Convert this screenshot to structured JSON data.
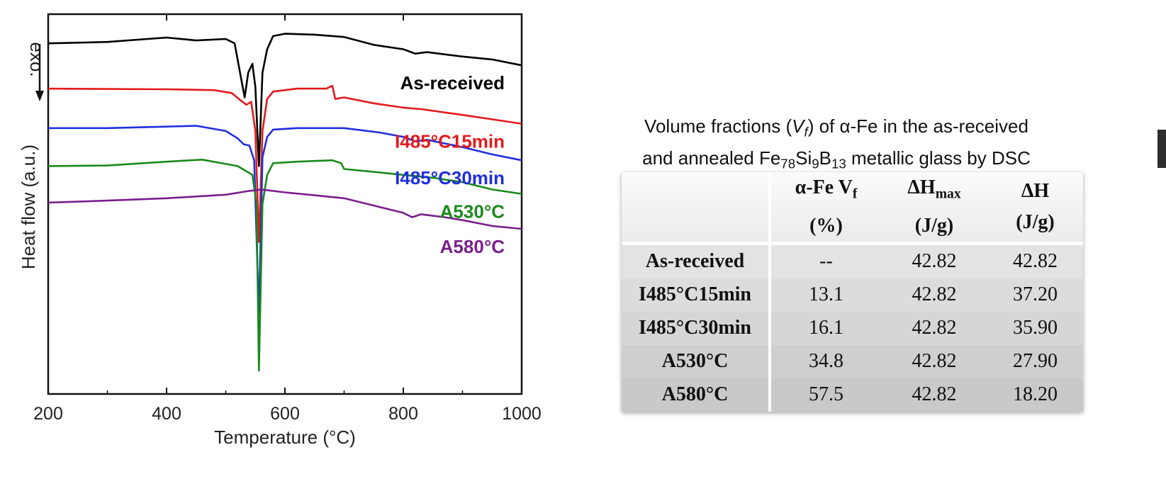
{
  "chart_data": {
    "type": "line",
    "title": "",
    "xlabel": "Temperature (°C)",
    "ylabel": "Heat flow (a.u.)",
    "annotation": "exo.",
    "xlim": [
      200,
      1000
    ],
    "xticks": [
      200,
      400,
      600,
      800,
      1000
    ],
    "xtick_labels": [
      "200",
      "400",
      "600",
      "800",
      "1000"
    ],
    "ylim": [
      -12,
      1
    ],
    "yticks_shown": false,
    "grid": false,
    "legend": "inline labels at right of each curve",
    "series": [
      {
        "name": "As-received",
        "color": "#000000",
        "points": [
          [
            200,
            0.0
          ],
          [
            300,
            0.05
          ],
          [
            400,
            0.2
          ],
          [
            450,
            0.1
          ],
          [
            500,
            0.15
          ],
          [
            515,
            0.0
          ],
          [
            525,
            -1.1
          ],
          [
            532,
            -1.85
          ],
          [
            538,
            -1.0
          ],
          [
            545,
            -0.7
          ],
          [
            550,
            -1.5
          ],
          [
            556,
            -4.2
          ],
          [
            562,
            -1.0
          ],
          [
            570,
            -0.2
          ],
          [
            580,
            0.25
          ],
          [
            600,
            0.33
          ],
          [
            650,
            0.3
          ],
          [
            700,
            0.22
          ],
          [
            750,
            -0.05
          ],
          [
            800,
            -0.2
          ],
          [
            820,
            -0.35
          ],
          [
            840,
            -0.3
          ],
          [
            900,
            -0.45
          ],
          [
            950,
            -0.55
          ],
          [
            1000,
            -0.75
          ]
        ]
      },
      {
        "name": "I485°C15min",
        "color": "#e31a1c",
        "points": [
          [
            200,
            -1.55
          ],
          [
            300,
            -1.56
          ],
          [
            400,
            -1.57
          ],
          [
            480,
            -1.6
          ],
          [
            510,
            -1.7
          ],
          [
            525,
            -1.95
          ],
          [
            535,
            -2.1
          ],
          [
            543,
            -2.0
          ],
          [
            550,
            -3.0
          ],
          [
            556,
            -6.8
          ],
          [
            562,
            -3.0
          ],
          [
            570,
            -1.9
          ],
          [
            580,
            -1.65
          ],
          [
            620,
            -1.55
          ],
          [
            670,
            -1.55
          ],
          [
            680,
            -1.45
          ],
          [
            685,
            -1.9
          ],
          [
            700,
            -1.85
          ],
          [
            750,
            -2.05
          ],
          [
            800,
            -2.2
          ],
          [
            830,
            -2.25
          ],
          [
            900,
            -2.45
          ],
          [
            950,
            -2.6
          ],
          [
            1000,
            -2.75
          ]
        ]
      },
      {
        "name": "I485°C30min",
        "color": "#1f2fe0",
        "points": [
          [
            200,
            -2.9
          ],
          [
            300,
            -2.9
          ],
          [
            400,
            -2.85
          ],
          [
            450,
            -2.82
          ],
          [
            500,
            -3.0
          ],
          [
            520,
            -3.25
          ],
          [
            530,
            -3.45
          ],
          [
            540,
            -3.5
          ],
          [
            548,
            -4.0
          ],
          [
            556,
            -9.3
          ],
          [
            562,
            -3.9
          ],
          [
            570,
            -3.2
          ],
          [
            580,
            -2.95
          ],
          [
            620,
            -2.9
          ],
          [
            680,
            -2.9
          ],
          [
            700,
            -2.9
          ],
          [
            760,
            -3.05
          ],
          [
            800,
            -3.2
          ],
          [
            820,
            -3.35
          ],
          [
            840,
            -3.3
          ],
          [
            900,
            -3.55
          ],
          [
            950,
            -3.8
          ],
          [
            1000,
            -4.0
          ]
        ]
      },
      {
        "name": "A530°C",
        "color": "#1a8a1a",
        "points": [
          [
            200,
            -4.2
          ],
          [
            300,
            -4.18
          ],
          [
            400,
            -4.05
          ],
          [
            460,
            -3.98
          ],
          [
            520,
            -4.2
          ],
          [
            545,
            -4.5
          ],
          [
            552,
            -5.5
          ],
          [
            556,
            -11.2
          ],
          [
            562,
            -5.5
          ],
          [
            570,
            -4.5
          ],
          [
            580,
            -4.1
          ],
          [
            620,
            -4.05
          ],
          [
            680,
            -4.0
          ],
          [
            695,
            -4.1
          ],
          [
            700,
            -4.3
          ],
          [
            750,
            -4.4
          ],
          [
            800,
            -4.5
          ],
          [
            850,
            -4.6
          ],
          [
            900,
            -4.75
          ],
          [
            950,
            -5.0
          ],
          [
            1000,
            -5.15
          ]
        ]
      },
      {
        "name": "A580°C",
        "color": "#7a1f8c",
        "points": [
          [
            200,
            -5.45
          ],
          [
            300,
            -5.38
          ],
          [
            400,
            -5.3
          ],
          [
            500,
            -5.18
          ],
          [
            540,
            -5.05
          ],
          [
            560,
            -5.0
          ],
          [
            600,
            -5.1
          ],
          [
            650,
            -5.2
          ],
          [
            700,
            -5.3
          ],
          [
            750,
            -5.55
          ],
          [
            800,
            -5.8
          ],
          [
            815,
            -5.95
          ],
          [
            830,
            -5.85
          ],
          [
            870,
            -5.95
          ],
          [
            900,
            -6.05
          ],
          [
            950,
            -6.25
          ],
          [
            1000,
            -6.35
          ]
        ]
      }
    ]
  },
  "table": {
    "caption_line1_parts": [
      "Volume fractions (",
      "V",
      "f",
      ") of α-Fe in the as-received"
    ],
    "caption_line2_parts": [
      "and annealed Fe",
      "78",
      "Si",
      "9",
      "B",
      "13",
      " metallic glass by DSC"
    ],
    "headers": [
      {
        "main": "",
        "sub": "",
        "unit": ""
      },
      {
        "main": "α-Fe V",
        "sub": "f",
        "unit": "(%)"
      },
      {
        "main": "ΔH",
        "sub": "max",
        "unit": "(J/g)"
      },
      {
        "main": "ΔH",
        "sub": "",
        "unit": "(J/g)"
      }
    ],
    "rows": [
      [
        "As-received",
        "--",
        "42.82",
        "42.82"
      ],
      [
        "I485°C15min",
        "13.1",
        "42.82",
        "37.20"
      ],
      [
        "I485°C30min",
        "16.1",
        "42.82",
        "35.90"
      ],
      [
        "A530°C",
        "34.8",
        "42.82",
        "27.90"
      ],
      [
        "A580°C",
        "57.5",
        "42.82",
        "18.20"
      ]
    ]
  }
}
